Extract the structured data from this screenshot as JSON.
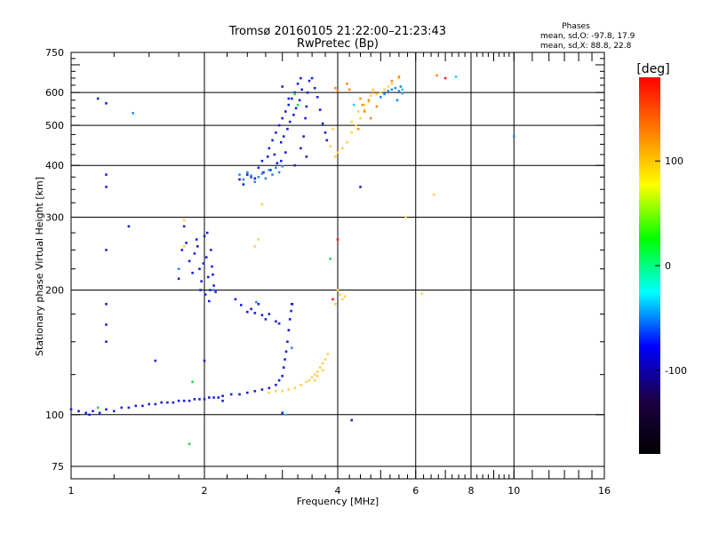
{
  "chart_data": {
    "type": "scatter",
    "title": "Tromsø 20160105 21:22:00–21:23:43",
    "subtitle": "RwPretec (Bp)",
    "xlabel": "Frequency [MHz]",
    "ylabel": "Stationary phase Virtual Height [km]",
    "x_scale": "log",
    "y_scale": "log",
    "xlim": [
      1,
      16
    ],
    "ylim": [
      70,
      750
    ],
    "x_ticks": [
      1,
      2,
      4,
      6,
      8,
      10,
      16
    ],
    "y_ticks": [
      75,
      100,
      200,
      300,
      400,
      500,
      600,
      750
    ],
    "grid": true,
    "stats": {
      "header": "Phases",
      "line1": "mean, sd,O:  -97.8,  17.9",
      "line2": "mean, sd,X:   88.8,  22.8"
    },
    "colorbar": {
      "label": "[deg]",
      "range": [
        -180,
        180
      ],
      "ticks": [
        100,
        0,
        -100
      ],
      "colors": [
        "#ff0000",
        "#ff7f00",
        "#ffff00",
        "#00ff00",
        "#00ffff",
        "#0000ff",
        "#1b0044",
        "#000000"
      ]
    },
    "series": [
      {
        "color": "#1a22d8",
        "points": [
          [
            1.0,
            103
          ],
          [
            1.04,
            102
          ],
          [
            1.08,
            101
          ],
          [
            1.1,
            100
          ],
          [
            1.12,
            102
          ],
          [
            1.16,
            101
          ],
          [
            1.2,
            103
          ],
          [
            1.25,
            102
          ],
          [
            1.3,
            104
          ],
          [
            1.35,
            104
          ],
          [
            1.4,
            105
          ],
          [
            1.45,
            105
          ],
          [
            1.5,
            106
          ],
          [
            1.55,
            106
          ],
          [
            1.6,
            107
          ],
          [
            1.65,
            107
          ],
          [
            1.7,
            107
          ],
          [
            1.75,
            108
          ],
          [
            1.8,
            108
          ],
          [
            1.85,
            108
          ],
          [
            1.9,
            109
          ],
          [
            1.95,
            109
          ],
          [
            2.0,
            109
          ],
          [
            2.05,
            110
          ],
          [
            2.1,
            110
          ],
          [
            2.15,
            110
          ],
          [
            2.2,
            111
          ],
          [
            2.3,
            112
          ],
          [
            2.4,
            112
          ],
          [
            2.5,
            113
          ],
          [
            2.6,
            114
          ],
          [
            2.7,
            115
          ],
          [
            2.8,
            116
          ],
          [
            2.9,
            118
          ],
          [
            2.95,
            121
          ],
          [
            3.0,
            124
          ],
          [
            3.02,
            130
          ],
          [
            3.04,
            136
          ],
          [
            3.06,
            142
          ],
          [
            3.08,
            150
          ],
          [
            3.1,
            160
          ],
          [
            3.12,
            170
          ],
          [
            3.14,
            178
          ],
          [
            3.16,
            185
          ],
          [
            2.0,
            135
          ],
          [
            2.2,
            108
          ],
          [
            1.75,
            213
          ],
          [
            1.78,
            250
          ],
          [
            1.8,
            285
          ],
          [
            1.82,
            260
          ],
          [
            1.85,
            235
          ],
          [
            1.88,
            220
          ],
          [
            1.9,
            245
          ],
          [
            1.92,
            265
          ],
          [
            1.95,
            225
          ],
          [
            1.97,
            210
          ],
          [
            2.0,
            270
          ],
          [
            2.02,
            240
          ],
          [
            2.04,
            215
          ],
          [
            2.06,
            200
          ],
          [
            2.08,
            228
          ],
          [
            2.1,
            205
          ],
          [
            2.12,
            198
          ],
          [
            1.96,
            200
          ],
          [
            2.01,
            195
          ],
          [
            2.05,
            188
          ],
          [
            1.93,
            255
          ],
          [
            2.03,
            275
          ],
          [
            2.07,
            250
          ],
          [
            1.99,
            232
          ],
          [
            2.09,
            218
          ],
          [
            2.35,
            190
          ],
          [
            2.42,
            184
          ],
          [
            2.5,
            177
          ],
          [
            2.55,
            180
          ],
          [
            2.6,
            176
          ],
          [
            2.65,
            185
          ],
          [
            2.7,
            174
          ],
          [
            2.75,
            170
          ],
          [
            2.8,
            175
          ],
          [
            2.9,
            168
          ],
          [
            2.95,
            166
          ],
          [
            3.1,
            160
          ],
          [
            3.15,
            185
          ],
          [
            2.4,
            370
          ],
          [
            2.45,
            360
          ],
          [
            2.5,
            380
          ],
          [
            2.55,
            375
          ],
          [
            2.6,
            372
          ],
          [
            2.65,
            395
          ],
          [
            2.7,
            410
          ],
          [
            2.72,
            385
          ],
          [
            2.78,
            420
          ],
          [
            2.8,
            440
          ],
          [
            2.82,
            390
          ],
          [
            2.85,
            460
          ],
          [
            2.88,
            425
          ],
          [
            2.9,
            480
          ],
          [
            2.92,
            405
          ],
          [
            2.95,
            500
          ],
          [
            2.98,
            455
          ],
          [
            3.0,
            520
          ],
          [
            3.02,
            470
          ],
          [
            3.05,
            540
          ],
          [
            3.08,
            490
          ],
          [
            3.1,
            560
          ],
          [
            3.12,
            510
          ],
          [
            3.15,
            580
          ],
          [
            3.18,
            530
          ],
          [
            3.2,
            600
          ],
          [
            3.22,
            550
          ],
          [
            3.25,
            630
          ],
          [
            3.28,
            575
          ],
          [
            3.3,
            650
          ],
          [
            3.32,
            610
          ],
          [
            3.35,
            470
          ],
          [
            3.38,
            520
          ],
          [
            3.4,
            555
          ],
          [
            3.42,
            600
          ],
          [
            3.45,
            640
          ],
          [
            3.5,
            650
          ],
          [
            3.55,
            615
          ],
          [
            3.6,
            585
          ],
          [
            3.65,
            545
          ],
          [
            3.7,
            505
          ],
          [
            3.75,
            480
          ],
          [
            3.78,
            460
          ],
          [
            3.1,
            580
          ],
          [
            3.0,
            620
          ],
          [
            3.2,
            400
          ],
          [
            3.3,
            440
          ],
          [
            3.4,
            420
          ],
          [
            3.05,
            430
          ],
          [
            2.98,
            410
          ],
          [
            1.15,
            580
          ],
          [
            1.2,
            565
          ],
          [
            1.2,
            380
          ],
          [
            1.2,
            355
          ],
          [
            1.2,
            250
          ],
          [
            1.2,
            185
          ],
          [
            1.2,
            165
          ],
          [
            1.2,
            150
          ],
          [
            1.35,
            285
          ],
          [
            1.55,
            135
          ],
          [
            4.3,
            97
          ],
          [
            4.5,
            355
          ],
          [
            3.0,
            101
          ]
        ]
      },
      {
        "color": "#2a8cf0",
        "points": [
          [
            2.4,
            380
          ],
          [
            2.45,
            370
          ],
          [
            2.5,
            385
          ],
          [
            2.55,
            378
          ],
          [
            2.6,
            365
          ],
          [
            2.65,
            375
          ],
          [
            2.7,
            382
          ],
          [
            2.75,
            372
          ],
          [
            2.8,
            390
          ],
          [
            2.85,
            380
          ],
          [
            2.9,
            395
          ],
          [
            2.95,
            385
          ],
          [
            3.0,
            398
          ],
          [
            5.0,
            585
          ],
          [
            5.1,
            595
          ],
          [
            5.2,
            605
          ],
          [
            5.3,
            610
          ],
          [
            5.4,
            615
          ],
          [
            5.5,
            605
          ],
          [
            5.55,
            620
          ],
          [
            5.6,
            598
          ],
          [
            5.45,
            575
          ],
          [
            1.38,
            535
          ],
          [
            10.0,
            470
          ],
          [
            2.62,
            187
          ],
          [
            2.1,
            200
          ],
          [
            3.15,
            145
          ],
          [
            1.75,
            225
          ]
        ]
      },
      {
        "color": "#ffd24a",
        "points": [
          [
            2.8,
            113
          ],
          [
            2.9,
            114
          ],
          [
            3.0,
            114
          ],
          [
            3.1,
            115
          ],
          [
            3.2,
            116
          ],
          [
            3.3,
            118
          ],
          [
            3.4,
            120
          ],
          [
            3.45,
            121
          ],
          [
            3.5,
            123
          ],
          [
            3.55,
            125
          ],
          [
            3.6,
            127
          ],
          [
            3.65,
            130
          ],
          [
            3.7,
            133
          ],
          [
            3.75,
            136
          ],
          [
            3.8,
            140
          ],
          [
            3.55,
            121
          ],
          [
            3.6,
            124
          ],
          [
            3.7,
            128
          ],
          [
            3.9,
            490
          ],
          [
            4.0,
            430
          ],
          [
            4.1,
            440
          ],
          [
            4.2,
            455
          ],
          [
            4.3,
            480
          ],
          [
            4.4,
            500
          ],
          [
            4.5,
            520
          ],
          [
            4.6,
            545
          ],
          [
            4.7,
            570
          ],
          [
            4.75,
            590
          ],
          [
            4.8,
            610
          ],
          [
            4.9,
            595
          ],
          [
            5.0,
            600
          ],
          [
            5.1,
            610
          ],
          [
            5.2,
            620
          ],
          [
            5.3,
            630
          ],
          [
            5.5,
            650
          ],
          [
            4.05,
            195
          ],
          [
            4.1,
            190
          ],
          [
            4.15,
            193
          ],
          [
            4.0,
            200
          ],
          [
            3.95,
            185
          ],
          [
            4.3,
            510
          ],
          [
            4.45,
            540
          ],
          [
            4.6,
            560
          ],
          [
            3.85,
            445
          ],
          [
            3.95,
            420
          ],
          [
            1.8,
            255
          ],
          [
            2.6,
            255
          ],
          [
            2.65,
            265
          ],
          [
            1.8,
            295
          ],
          [
            2.7,
            322
          ],
          [
            6.2,
            196
          ],
          [
            6.6,
            340
          ],
          [
            5.7,
            300
          ]
        ]
      },
      {
        "color": "#ff8a18",
        "points": [
          [
            4.0,
            605
          ],
          [
            4.25,
            610
          ],
          [
            4.5,
            580
          ],
          [
            4.55,
            560
          ],
          [
            4.6,
            540
          ],
          [
            4.7,
            575
          ],
          [
            4.8,
            600
          ],
          [
            5.3,
            640
          ],
          [
            5.5,
            655
          ],
          [
            6.7,
            660
          ],
          [
            3.95,
            615
          ],
          [
            4.2,
            630
          ],
          [
            4.45,
            490
          ],
          [
            4.75,
            520
          ],
          [
            4.9,
            555
          ]
        ]
      },
      {
        "color": "#ff2020",
        "points": [
          [
            4.0,
            265
          ],
          [
            7.0,
            650
          ],
          [
            3.9,
            190
          ]
        ]
      },
      {
        "color": "#2ad84a",
        "points": [
          [
            1.15,
            104
          ],
          [
            1.85,
            85
          ],
          [
            1.88,
            120
          ],
          [
            3.2,
            595
          ],
          [
            3.85,
            238
          ],
          [
            3.25,
            560
          ]
        ]
      },
      {
        "color": "#30d0d0",
        "points": [
          [
            7.4,
            655
          ],
          [
            5.6,
            610
          ],
          [
            3.05,
            100
          ],
          [
            4.35,
            560
          ]
        ]
      }
    ]
  }
}
